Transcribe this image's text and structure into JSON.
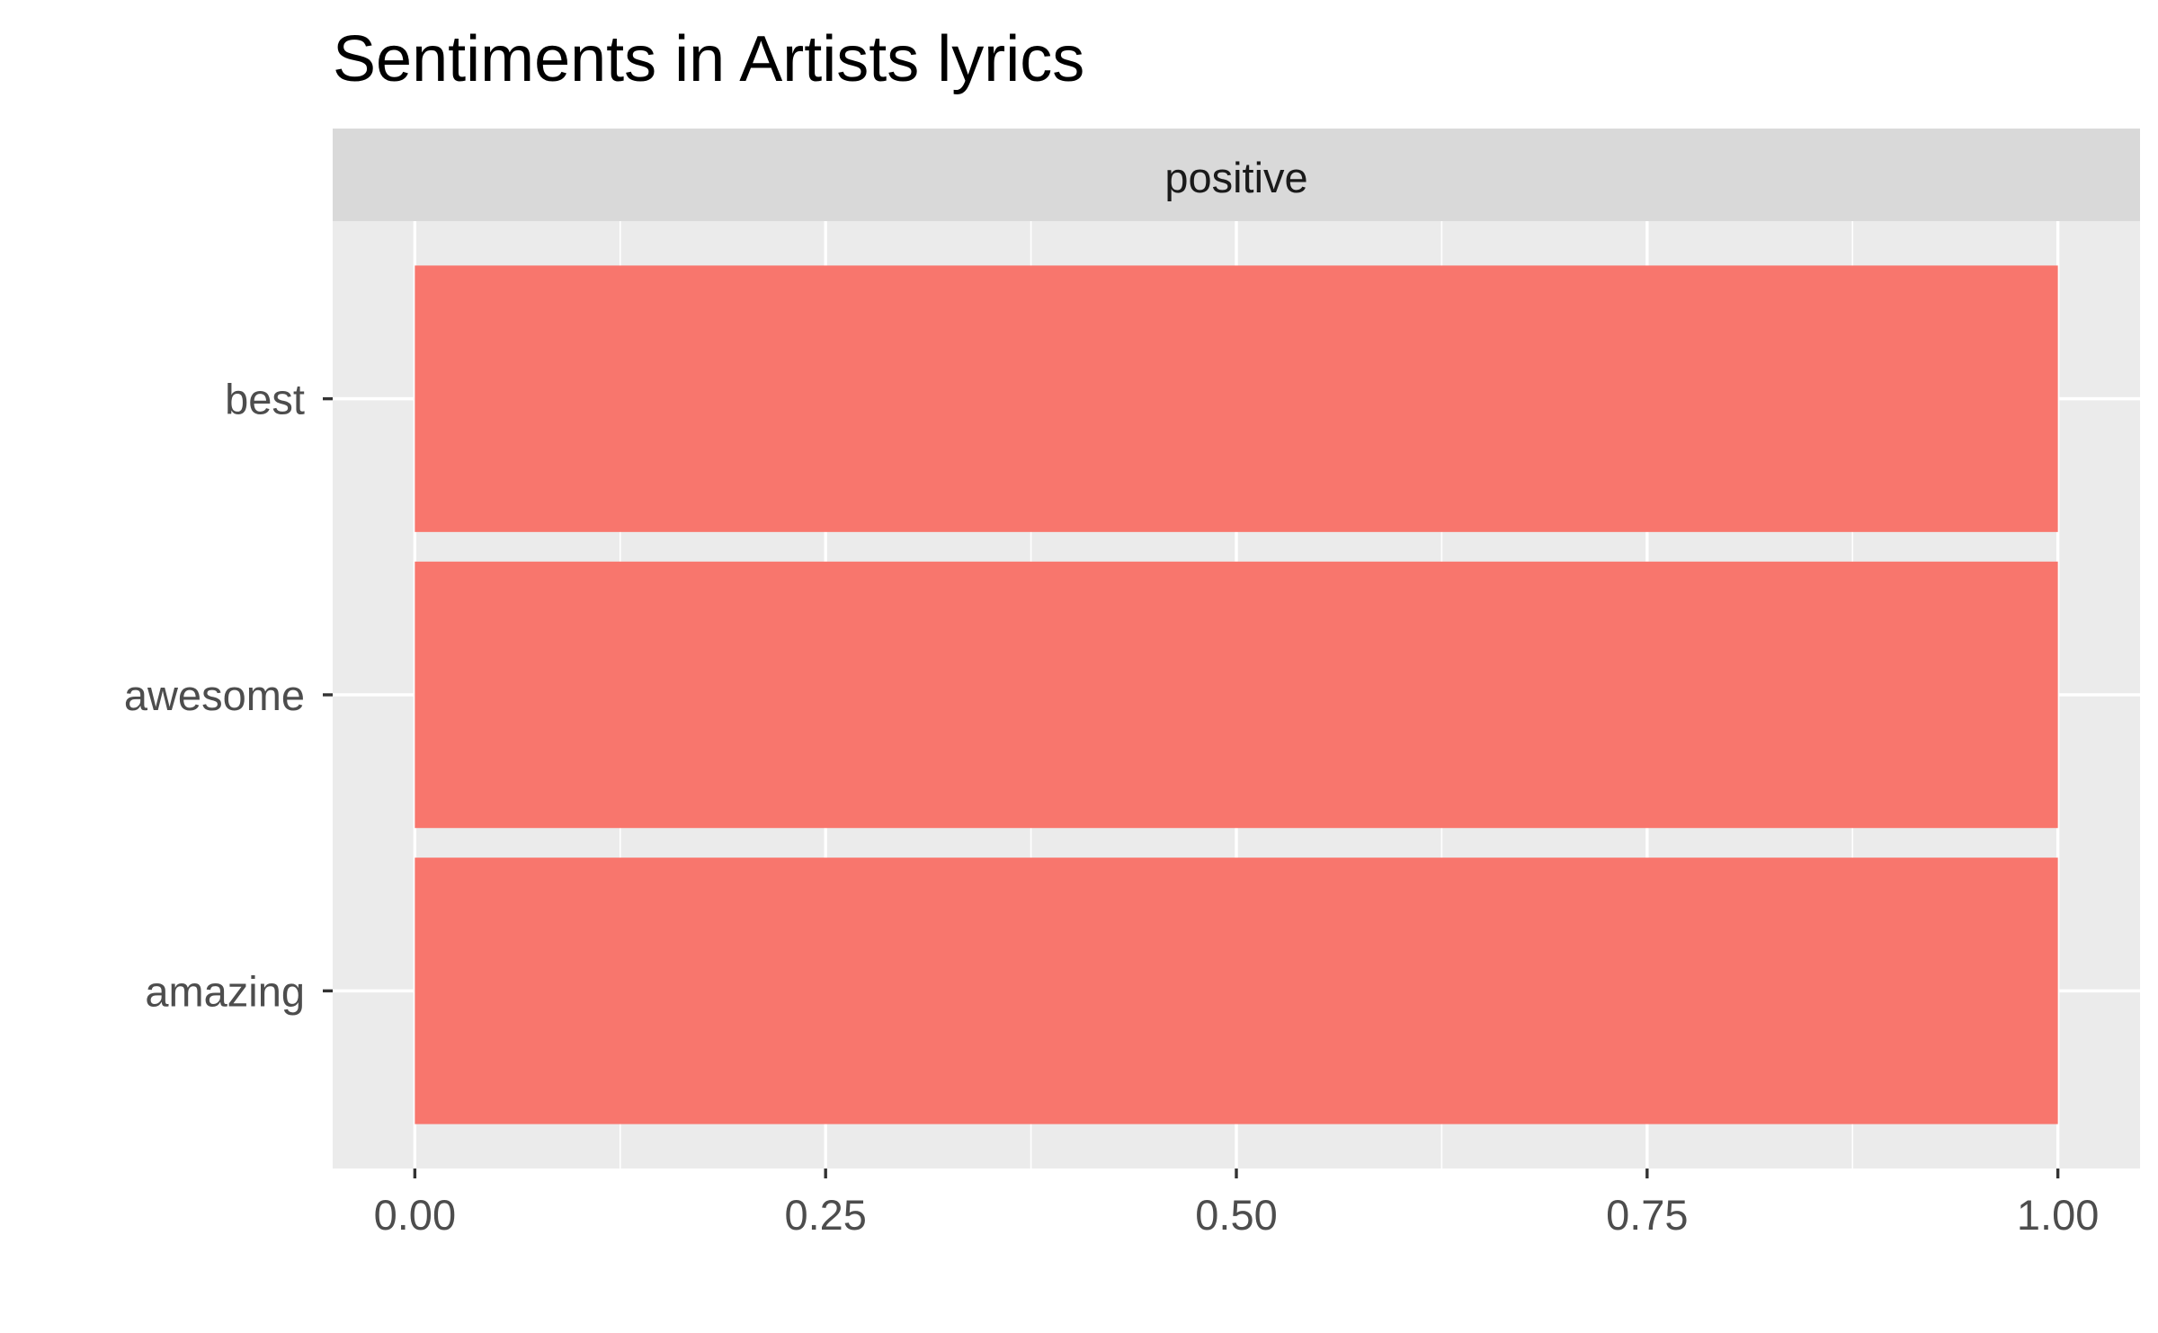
{
  "chart_data": {
    "type": "bar",
    "orientation": "horizontal",
    "title": "Sentiments in Artists lyrics",
    "facet": "positive",
    "categories": [
      "amazing",
      "awesome",
      "best"
    ],
    "values": [
      1,
      1,
      1
    ],
    "xlim": [
      0,
      1
    ],
    "x_ticks": [
      "0.00",
      "0.25",
      "0.50",
      "0.75",
      "1.00"
    ],
    "xlabel": "",
    "ylabel": "",
    "grid": true,
    "colors": {
      "bar": "#F8766D",
      "panel": "#EBEBEB",
      "strip": "#D9D9D9",
      "grid": "#FFFFFF",
      "tick": "#333333"
    }
  }
}
